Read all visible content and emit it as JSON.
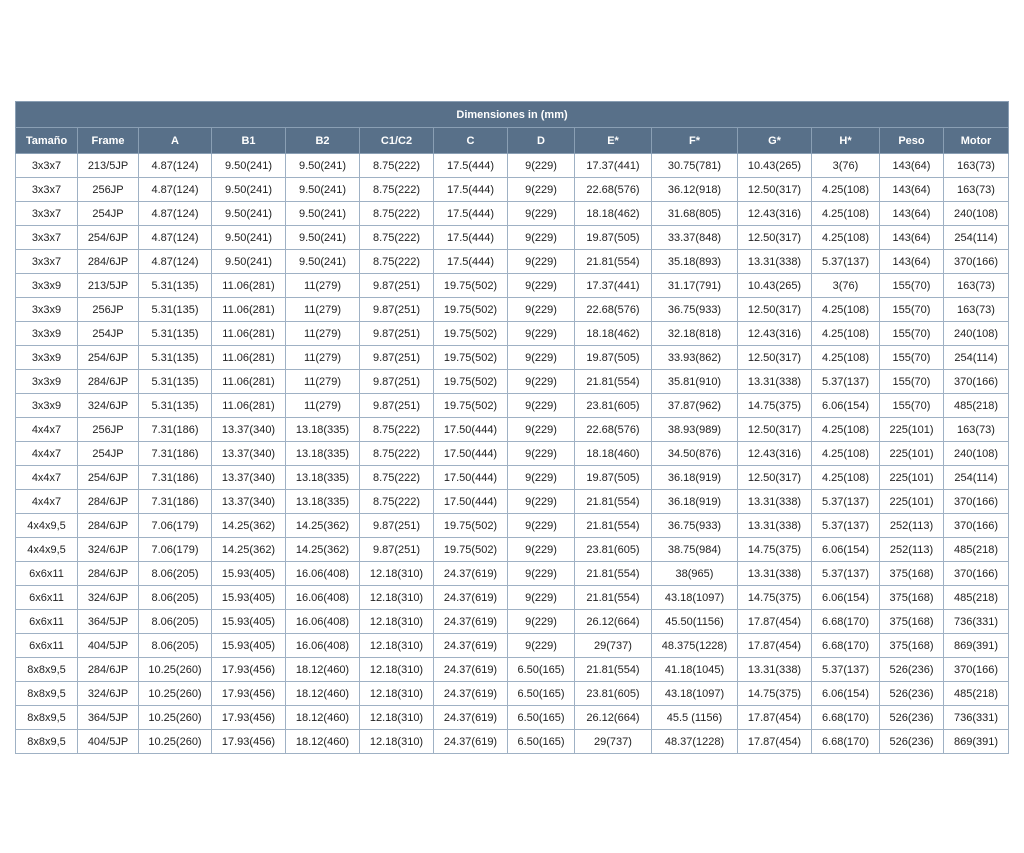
{
  "table": {
    "title": "Dimensiones in (mm)",
    "columns": [
      "Tamaño",
      "Frame",
      "A",
      "B1",
      "B2",
      "C1/C2",
      "C",
      "D",
      "E*",
      "F*",
      "G*",
      "H*",
      "Peso",
      "Motor"
    ],
    "rows": [
      [
        "3x3x7",
        "213/5JP",
        "4.87(124)",
        "9.50(241)",
        "9.50(241)",
        "8.75(222)",
        "17.5(444)",
        "9(229)",
        "17.37(441)",
        "30.75(781)",
        "10.43(265)",
        "3(76)",
        "143(64)",
        "163(73)"
      ],
      [
        "3x3x7",
        "256JP",
        "4.87(124)",
        "9.50(241)",
        "9.50(241)",
        "8.75(222)",
        "17.5(444)",
        "9(229)",
        "22.68(576)",
        "36.12(918)",
        "12.50(317)",
        "4.25(108)",
        "143(64)",
        "163(73)"
      ],
      [
        "3x3x7",
        "254JP",
        "4.87(124)",
        "9.50(241)",
        "9.50(241)",
        "8.75(222)",
        "17.5(444)",
        "9(229)",
        "18.18(462)",
        "31.68(805)",
        "12.43(316)",
        "4.25(108)",
        "143(64)",
        "240(108)"
      ],
      [
        "3x3x7",
        "254/6JP",
        "4.87(124)",
        "9.50(241)",
        "9.50(241)",
        "8.75(222)",
        "17.5(444)",
        "9(229)",
        "19.87(505)",
        "33.37(848)",
        "12.50(317)",
        "4.25(108)",
        "143(64)",
        "254(114)"
      ],
      [
        "3x3x7",
        "284/6JP",
        "4.87(124)",
        "9.50(241)",
        "9.50(241)",
        "8.75(222)",
        "17.5(444)",
        "9(229)",
        "21.81(554)",
        "35.18(893)",
        "13.31(338)",
        "5.37(137)",
        "143(64)",
        "370(166)"
      ],
      [
        "3x3x9",
        "213/5JP",
        "5.31(135)",
        "11.06(281)",
        "11(279)",
        "9.87(251)",
        "19.75(502)",
        "9(229)",
        "17.37(441)",
        "31.17(791)",
        "10.43(265)",
        "3(76)",
        "155(70)",
        "163(73)"
      ],
      [
        "3x3x9",
        "256JP",
        "5.31(135)",
        "11.06(281)",
        "11(279)",
        "9.87(251)",
        "19.75(502)",
        "9(229)",
        "22.68(576)",
        "36.75(933)",
        "12.50(317)",
        "4.25(108)",
        "155(70)",
        "163(73)"
      ],
      [
        "3x3x9",
        "254JP",
        "5.31(135)",
        "11.06(281)",
        "11(279)",
        "9.87(251)",
        "19.75(502)",
        "9(229)",
        "18.18(462)",
        "32.18(818)",
        "12.43(316)",
        "4.25(108)",
        "155(70)",
        "240(108)"
      ],
      [
        "3x3x9",
        "254/6JP",
        "5.31(135)",
        "11.06(281)",
        "11(279)",
        "9.87(251)",
        "19.75(502)",
        "9(229)",
        "19.87(505)",
        "33.93(862)",
        "12.50(317)",
        "4.25(108)",
        "155(70)",
        "254(114)"
      ],
      [
        "3x3x9",
        "284/6JP",
        "5.31(135)",
        "11.06(281)",
        "11(279)",
        "9.87(251)",
        "19.75(502)",
        "9(229)",
        "21.81(554)",
        "35.81(910)",
        "13.31(338)",
        "5.37(137)",
        "155(70)",
        "370(166)"
      ],
      [
        "3x3x9",
        "324/6JP",
        "5.31(135)",
        "11.06(281)",
        "11(279)",
        "9.87(251)",
        "19.75(502)",
        "9(229)",
        "23.81(605)",
        "37.87(962)",
        "14.75(375)",
        "6.06(154)",
        "155(70)",
        "485(218)"
      ],
      [
        "4x4x7",
        "256JP",
        "7.31(186)",
        "13.37(340)",
        "13.18(335)",
        "8.75(222)",
        "17.50(444)",
        "9(229)",
        "22.68(576)",
        "38.93(989)",
        "12.50(317)",
        "4.25(108)",
        "225(101)",
        "163(73)"
      ],
      [
        "4x4x7",
        "254JP",
        "7.31(186)",
        "13.37(340)",
        "13.18(335)",
        "8.75(222)",
        "17.50(444)",
        "9(229)",
        "18.18(460)",
        "34.50(876)",
        "12.43(316)",
        "4.25(108)",
        "225(101)",
        "240(108)"
      ],
      [
        "4x4x7",
        "254/6JP",
        "7.31(186)",
        "13.37(340)",
        "13.18(335)",
        "8.75(222)",
        "17.50(444)",
        "9(229)",
        "19.87(505)",
        "36.18(919)",
        "12.50(317)",
        "4.25(108)",
        "225(101)",
        "254(114)"
      ],
      [
        "4x4x7",
        "284/6JP",
        "7.31(186)",
        "13.37(340)",
        "13.18(335)",
        "8.75(222)",
        "17.50(444)",
        "9(229)",
        "21.81(554)",
        "36.18(919)",
        "13.31(338)",
        "5.37(137)",
        "225(101)",
        "370(166)"
      ],
      [
        "4x4x9,5",
        "284/6JP",
        "7.06(179)",
        "14.25(362)",
        "14.25(362)",
        "9.87(251)",
        "19.75(502)",
        "9(229)",
        "21.81(554)",
        "36.75(933)",
        "13.31(338)",
        "5.37(137)",
        "252(113)",
        "370(166)"
      ],
      [
        "4x4x9,5",
        "324/6JP",
        "7.06(179)",
        "14.25(362)",
        "14.25(362)",
        "9.87(251)",
        "19.75(502)",
        "9(229)",
        "23.81(605)",
        "38.75(984)",
        "14.75(375)",
        "6.06(154)",
        "252(113)",
        "485(218)"
      ],
      [
        "6x6x11",
        "284/6JP",
        "8.06(205)",
        "15.93(405)",
        "16.06(408)",
        "12.18(310)",
        "24.37(619)",
        "9(229)",
        "21.81(554)",
        "38(965)",
        "13.31(338)",
        "5.37(137)",
        "375(168)",
        "370(166)"
      ],
      [
        "6x6x11",
        "324/6JP",
        "8.06(205)",
        "15.93(405)",
        "16.06(408)",
        "12.18(310)",
        "24.37(619)",
        "9(229)",
        "21.81(554)",
        "43.18(1097)",
        "14.75(375)",
        "6.06(154)",
        "375(168)",
        "485(218)"
      ],
      [
        "6x6x11",
        "364/5JP",
        "8.06(205)",
        "15.93(405)",
        "16.06(408)",
        "12.18(310)",
        "24.37(619)",
        "9(229)",
        "26.12(664)",
        "45.50(1156)",
        "17.87(454)",
        "6.68(170)",
        "375(168)",
        "736(331)"
      ],
      [
        "6x6x11",
        "404/5JP",
        "8.06(205)",
        "15.93(405)",
        "16.06(408)",
        "12.18(310)",
        "24.37(619)",
        "9(229)",
        "29(737)",
        "48.375(1228)",
        "17.87(454)",
        "6.68(170)",
        "375(168)",
        "869(391)"
      ],
      [
        "8x8x9,5",
        "284/6JP",
        "10.25(260)",
        "17.93(456)",
        "18.12(460)",
        "12.18(310)",
        "24.37(619)",
        "6.50(165)",
        "21.81(554)",
        "41.18(1045)",
        "13.31(338)",
        "5.37(137)",
        "526(236)",
        "370(166)"
      ],
      [
        "8x8x9,5",
        "324/6JP",
        "10.25(260)",
        "17.93(456)",
        "18.12(460)",
        "12.18(310)",
        "24.37(619)",
        "6.50(165)",
        "23.81(605)",
        "43.18(1097)",
        "14.75(375)",
        "6.06(154)",
        "526(236)",
        "485(218)"
      ],
      [
        "8x8x9,5",
        "364/5JP",
        "10.25(260)",
        "17.93(456)",
        "18.12(460)",
        "12.18(310)",
        "24.37(619)",
        "6.50(165)",
        "26.12(664)",
        "45.5 (1156)",
        "17.87(454)",
        "6.68(170)",
        "526(236)",
        "736(331)"
      ],
      [
        "8x8x9,5",
        "404/5JP",
        "10.25(260)",
        "17.93(456)",
        "18.12(460)",
        "12.18(310)",
        "24.37(619)",
        "6.50(165)",
        "29(737)",
        "48.37(1228)",
        "17.87(454)",
        "6.68(170)",
        "526(236)",
        "869(391)"
      ]
    ]
  }
}
